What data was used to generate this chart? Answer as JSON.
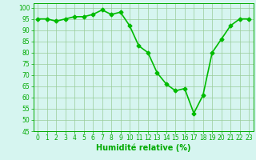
{
  "x": [
    0,
    1,
    2,
    3,
    4,
    5,
    6,
    7,
    8,
    9,
    10,
    11,
    12,
    13,
    14,
    15,
    16,
    17,
    18,
    19,
    20,
    21,
    22,
    23
  ],
  "y": [
    95,
    95,
    94,
    95,
    96,
    96,
    97,
    99,
    97,
    98,
    92,
    83,
    80,
    71,
    66,
    63,
    64,
    53,
    61,
    80,
    86,
    92,
    95,
    95
  ],
  "line_color": "#00bb00",
  "marker": "D",
  "marker_size": 2.5,
  "linewidth": 1.2,
  "bg_color": "#d6f5f0",
  "grid_color": "#99cc99",
  "xlabel": "Humidité relative (%)",
  "xlabel_color": "#00aa00",
  "ylim": [
    45,
    102
  ],
  "yticks": [
    45,
    50,
    55,
    60,
    65,
    70,
    75,
    80,
    85,
    90,
    95,
    100
  ],
  "xlim": [
    -0.5,
    23.5
  ],
  "xticks": [
    0,
    1,
    2,
    3,
    4,
    5,
    6,
    7,
    8,
    9,
    10,
    11,
    12,
    13,
    14,
    15,
    16,
    17,
    18,
    19,
    20,
    21,
    22,
    23
  ],
  "tick_color": "#00aa00",
  "tick_fontsize": 5.5,
  "xlabel_fontsize": 7.0
}
